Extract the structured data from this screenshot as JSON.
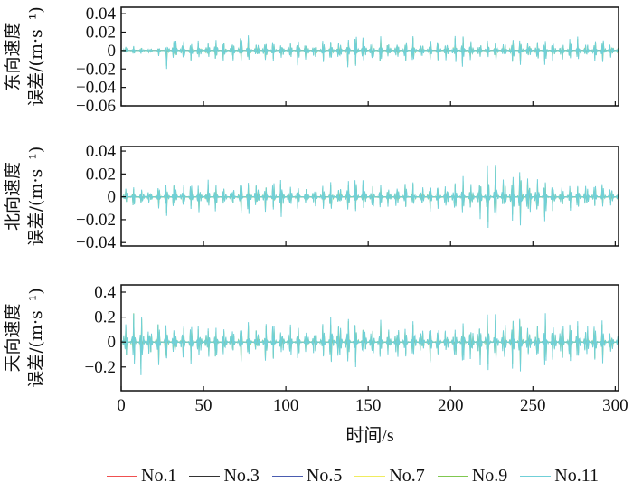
{
  "chart_data": [
    {
      "type": "line",
      "ylabel_line1": "东向速度",
      "ylabel_line2": "误差/(m·s⁻¹)",
      "ylim": [
        -0.06,
        0.047
      ],
      "yticks": [
        0.04,
        0.02,
        0,
        -0.02,
        -0.04,
        -0.06
      ],
      "ytick_labels": [
        "0.04",
        "0.02",
        "0",
        "−0.02",
        "−0.04",
        "−0.06"
      ],
      "spike_interval_s": 5,
      "no11_peak_envelope": [
        0.004,
        0.006,
        0.005,
        0.004,
        0.003,
        0.006,
        0.02,
        0.018,
        0.015,
        0.017,
        0.012,
        0.014,
        0.016,
        0.013,
        0.018,
        0.019,
        0.014,
        0.017,
        0.016,
        0.012,
        0.015,
        0.018,
        0.013,
        0.014,
        0.012,
        0.016,
        0.015,
        0.014,
        0.022,
        0.02,
        0.017,
        0.013,
        0.016,
        0.015,
        0.014,
        0.017,
        0.016,
        0.013,
        0.012,
        0.015,
        0.014,
        0.018,
        0.016,
        0.015,
        0.013,
        0.012,
        0.014,
        0.016,
        0.017,
        0.015,
        0.013,
        0.014,
        0.016,
        0.012,
        0.015,
        0.014,
        0.013,
        0.012,
        0.016,
        0.015,
        0.014
      ]
    },
    {
      "type": "line",
      "ylabel_line1": "北向速度",
      "ylabel_line2": "误差/(m·s⁻¹)",
      "ylim": [
        -0.043,
        0.044
      ],
      "yticks": [
        0.04,
        0.02,
        0,
        -0.02,
        -0.04
      ],
      "ytick_labels": [
        "0.04",
        "0.02",
        "0",
        "−0.02",
        "−0.04"
      ],
      "spike_interval_s": 5,
      "no11_peak_envelope": [
        0.006,
        0.012,
        0.01,
        0.014,
        0.008,
        0.016,
        0.018,
        0.015,
        0.012,
        0.017,
        0.013,
        0.016,
        0.014,
        0.012,
        0.015,
        0.018,
        0.02,
        0.016,
        0.014,
        0.022,
        0.018,
        0.015,
        0.01,
        0.012,
        0.014,
        0.016,
        0.012,
        0.015,
        0.02,
        0.018,
        0.016,
        0.013,
        0.012,
        0.015,
        0.014,
        0.013,
        0.011,
        0.015,
        0.014,
        0.018,
        0.02,
        0.018,
        0.016,
        0.022,
        0.028,
        0.03,
        0.026,
        0.024,
        0.03,
        0.032,
        0.028,
        0.022,
        0.018,
        0.016,
        0.015,
        0.014,
        0.016,
        0.015,
        0.013,
        0.012,
        0.014
      ]
    },
    {
      "type": "line",
      "ylabel_line1": "天向速度",
      "ylabel_line2": "误差/(m·s⁻¹)",
      "ylim": [
        -0.39,
        0.458
      ],
      "yticks": [
        0.4,
        0.2,
        0,
        -0.2
      ],
      "ytick_labels": [
        "0.4",
        "0.2",
        "0",
        "−0.2"
      ],
      "spike_interval_s": 5,
      "no11_peak_envelope": [
        0.15,
        0.22,
        0.3,
        0.28,
        0.2,
        0.22,
        0.18,
        0.2,
        0.16,
        0.2,
        0.18,
        0.17,
        0.16,
        0.2,
        0.18,
        0.2,
        0.16,
        0.14,
        0.2,
        0.15,
        0.17,
        0.16,
        0.15,
        0.18,
        0.16,
        0.2,
        0.25,
        0.28,
        0.24,
        0.2,
        0.22,
        0.18,
        0.16,
        0.2,
        0.19,
        0.18,
        0.22,
        0.2,
        0.17,
        0.16,
        0.18,
        0.2,
        0.22,
        0.25,
        0.3,
        0.28,
        0.25,
        0.26,
        0.3,
        0.24,
        0.2,
        0.22,
        0.26,
        0.3,
        0.25,
        0.2,
        0.18,
        0.22,
        0.2,
        0.18,
        0.16
      ]
    }
  ],
  "x": {
    "label": "时间/s",
    "xlim": [
      0,
      302
    ],
    "ticks": [
      0,
      50,
      100,
      150,
      200,
      250,
      300
    ],
    "tick_labels": [
      "0",
      "50",
      "100",
      "150",
      "200",
      "250",
      "300"
    ]
  },
  "series": [
    {
      "name": "No.1",
      "color": "#f05050",
      "relative_amplitude": 0.12
    },
    {
      "name": "No.3",
      "color": "#333333",
      "relative_amplitude": 0.3
    },
    {
      "name": "No.5",
      "color": "#4a5cb0",
      "relative_amplitude": 0.45
    },
    {
      "name": "No.7",
      "color": "#f0ec60",
      "relative_amplitude": 0.65
    },
    {
      "name": "No.9",
      "color": "#80c850",
      "relative_amplitude": 0.85
    },
    {
      "name": "No.11",
      "color": "#70d0d8",
      "relative_amplitude": 1.0
    }
  ]
}
